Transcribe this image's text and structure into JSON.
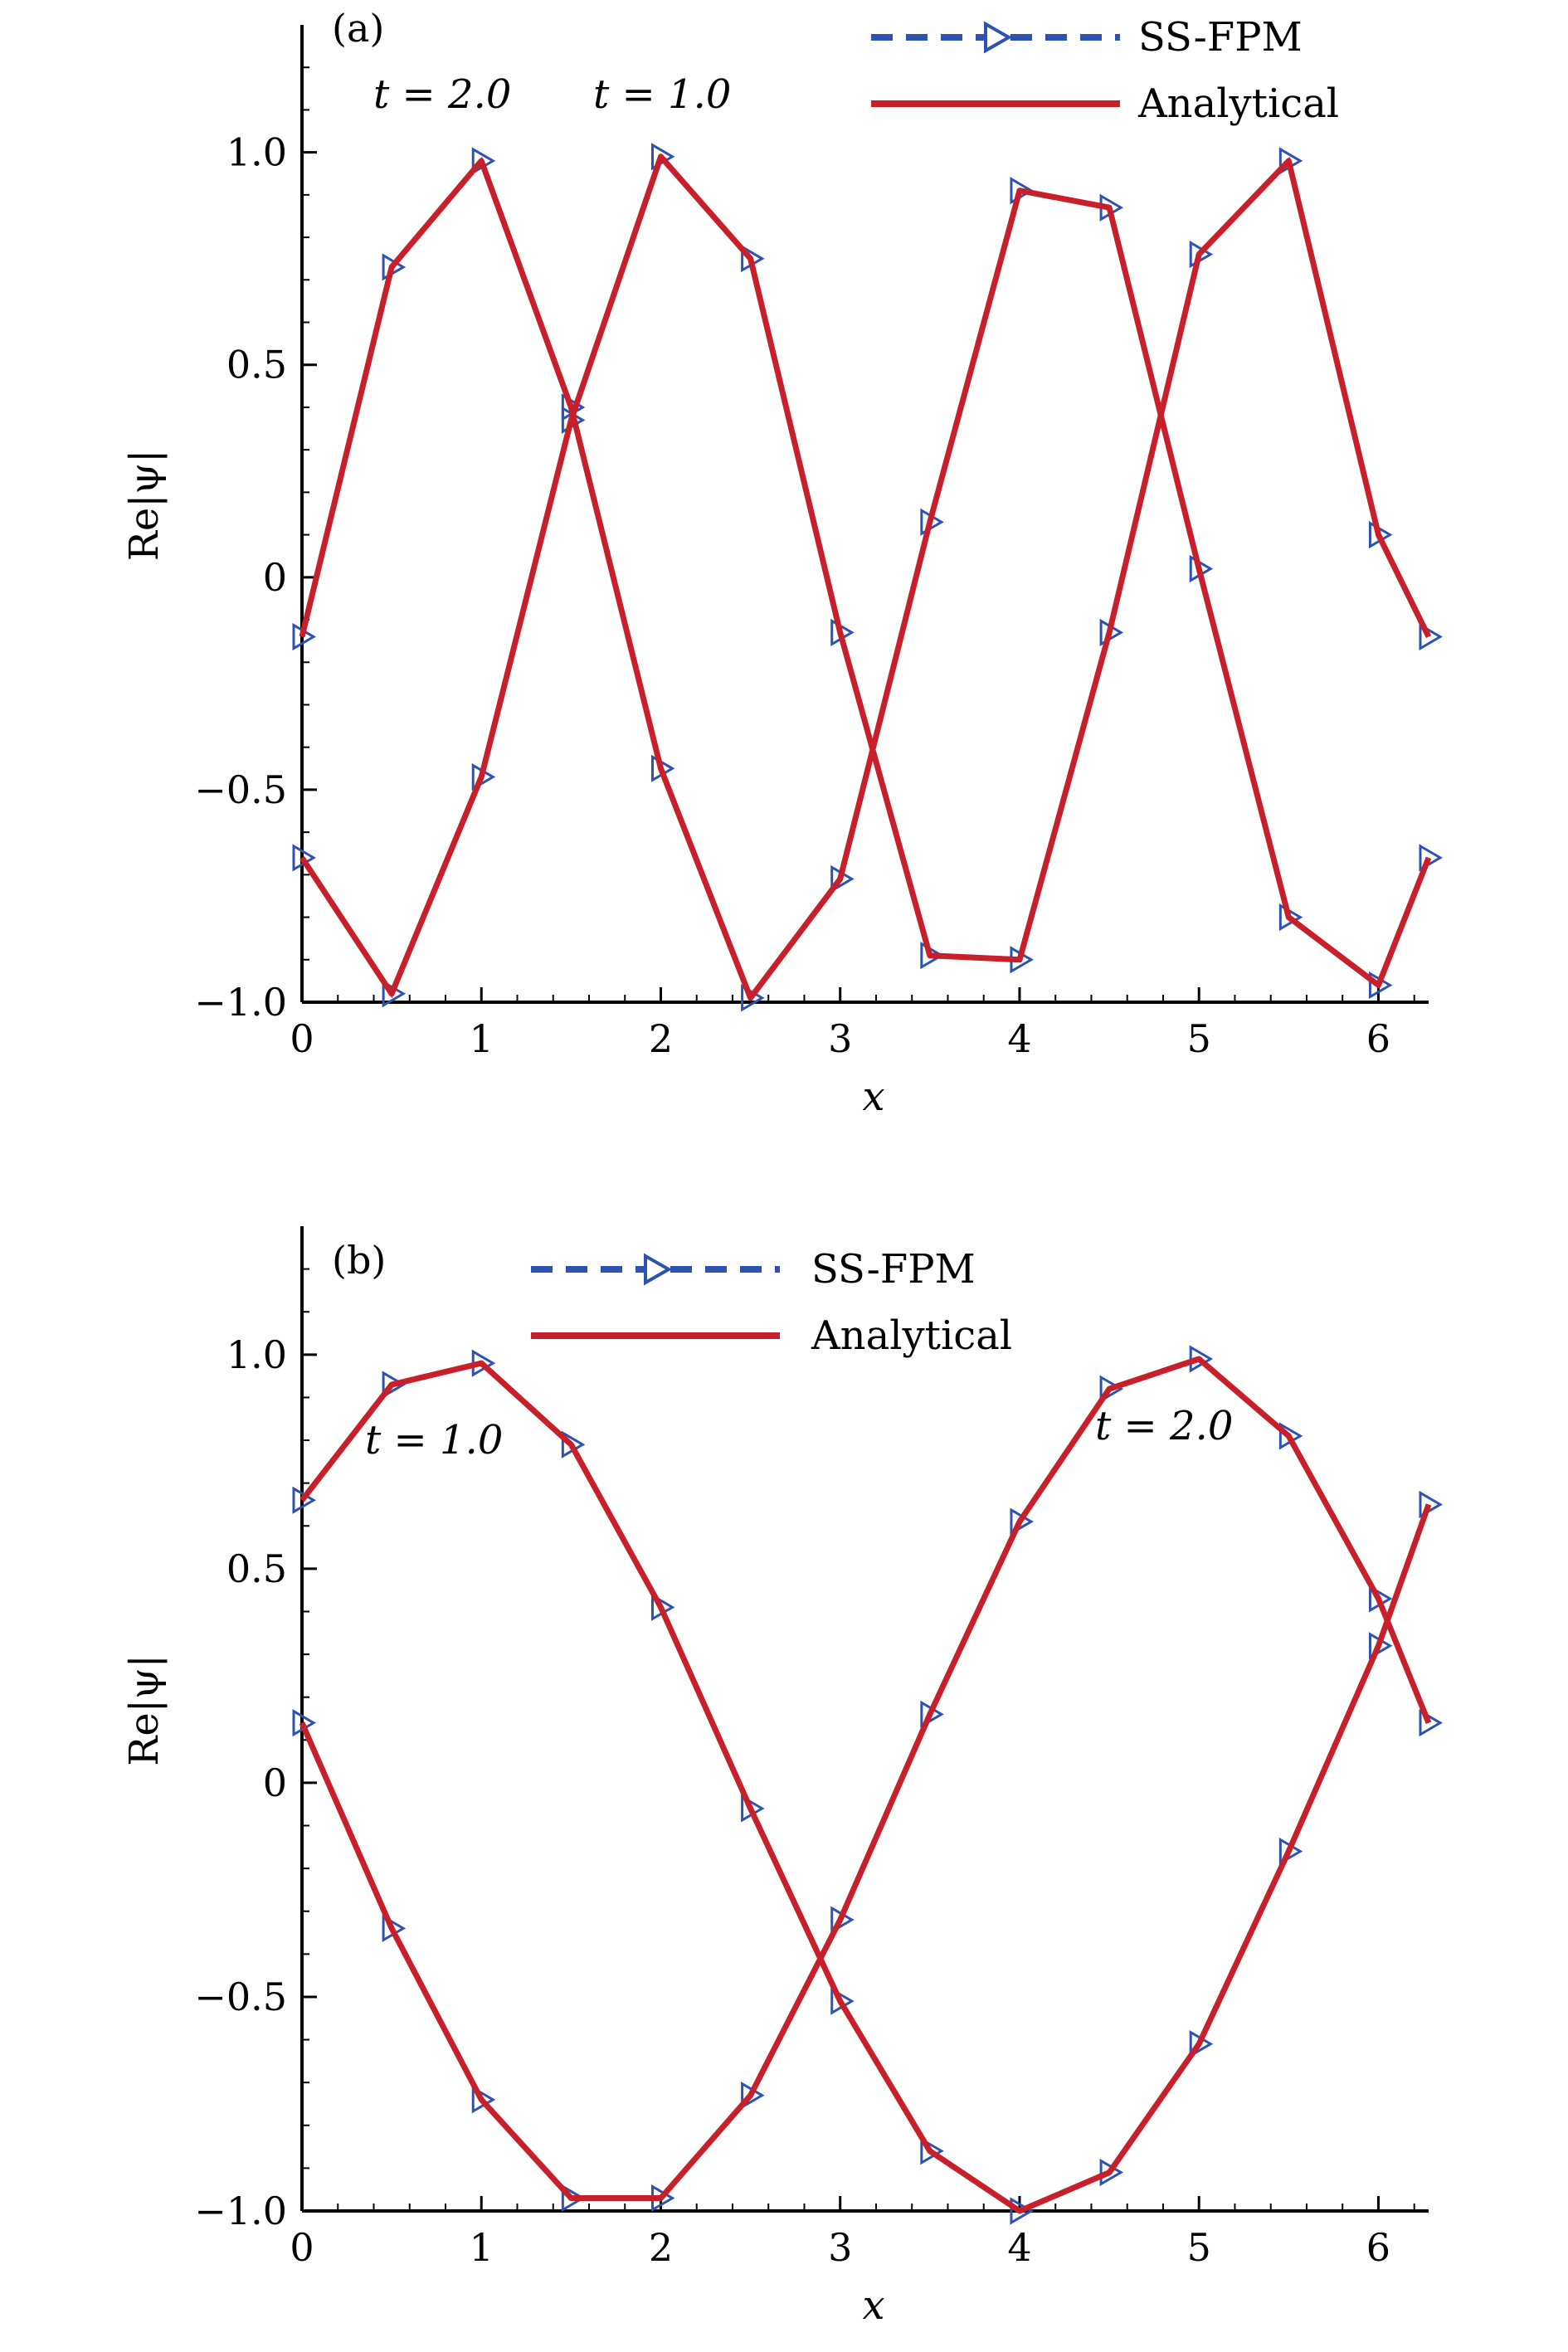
{
  "chart_data": [
    {
      "type": "line",
      "panel_label": "(a)",
      "xlabel": "x",
      "ylabel": "Re|ψ|",
      "xlim": [
        0,
        6.28
      ],
      "ylim": [
        -1.0,
        1.3
      ],
      "xticks": [
        "0",
        "1",
        "2",
        "3",
        "4",
        "5",
        "6"
      ],
      "yticks": [
        "−1.0",
        "−0.5",
        "0",
        "0.5",
        "1.0"
      ],
      "legend": [
        "SS-FPM",
        "Analytical"
      ],
      "annotations": [
        "t = 2.0",
        "t = 1.0"
      ],
      "series": [
        {
          "name": "SS-FPM",
          "style": "dashed line with triangle markers",
          "curves": [
            {
              "x": [
                0,
                0.5,
                1.0,
                1.5,
                2.0,
                2.5,
                3.0,
                3.5,
                4.0,
                4.5,
                5.0,
                5.5,
                6.0,
                6.28
              ],
              "y": [
                -0.14,
                0.73,
                0.98,
                0.4,
                -0.45,
                -0.99,
                -0.71,
                0.13,
                0.91,
                0.87,
                0.02,
                -0.8,
                -0.96,
                -0.66
              ]
            },
            {
              "x": [
                0,
                0.5,
                1.0,
                1.5,
                2.0,
                2.5,
                3.0,
                3.5,
                4.0,
                4.5,
                5.0,
                5.5,
                6.0,
                6.28
              ],
              "y": [
                -0.66,
                -0.98,
                -0.47,
                0.37,
                0.99,
                0.75,
                -0.13,
                -0.89,
                -0.9,
                -0.13,
                0.76,
                0.98,
                0.1,
                -0.14
              ]
            }
          ]
        },
        {
          "name": "Analytical",
          "style": "solid line",
          "curves": [
            {
              "x": [
                0,
                0.5,
                1.0,
                1.5,
                2.0,
                2.5,
                3.0,
                3.5,
                4.0,
                4.5,
                5.0,
                5.5,
                6.0,
                6.28
              ],
              "y": [
                -0.14,
                0.73,
                0.98,
                0.4,
                -0.45,
                -0.99,
                -0.71,
                0.13,
                0.91,
                0.87,
                0.02,
                -0.8,
                -0.96,
                -0.66
              ]
            },
            {
              "x": [
                0,
                0.5,
                1.0,
                1.5,
                2.0,
                2.5,
                3.0,
                3.5,
                4.0,
                4.5,
                5.0,
                5.5,
                6.0,
                6.28
              ],
              "y": [
                -0.66,
                -0.98,
                -0.47,
                0.37,
                0.99,
                0.75,
                -0.13,
                -0.89,
                -0.9,
                -0.13,
                0.76,
                0.98,
                0.1,
                -0.14
              ]
            }
          ]
        }
      ]
    },
    {
      "type": "line",
      "panel_label": "(b)",
      "xlabel": "x",
      "ylabel": "Re|ψ|",
      "xlim": [
        0,
        6.28
      ],
      "ylim": [
        -1.0,
        1.3
      ],
      "xticks": [
        "0",
        "1",
        "2",
        "3",
        "4",
        "5",
        "6"
      ],
      "yticks": [
        "−1.0",
        "−0.5",
        "0",
        "0.5",
        "1.0"
      ],
      "legend": [
        "SS-FPM",
        "Analytical"
      ],
      "annotations": [
        "t = 1.0",
        "t = 2.0"
      ],
      "series": [
        {
          "name": "SS-FPM",
          "style": "dashed line with triangle markers",
          "curves": [
            {
              "x": [
                0,
                0.5,
                1.0,
                1.5,
                2.0,
                2.5,
                3.0,
                3.5,
                4.0,
                4.5,
                5.0,
                5.5,
                6.0,
                6.28
              ],
              "y": [
                0.66,
                0.93,
                0.98,
                0.79,
                0.41,
                -0.06,
                -0.51,
                -0.86,
                -1.0,
                -0.91,
                -0.61,
                -0.16,
                0.32,
                0.65
              ]
            },
            {
              "x": [
                0,
                0.5,
                1.0,
                1.5,
                2.0,
                2.5,
                3.0,
                3.5,
                4.0,
                4.5,
                5.0,
                5.5,
                6.0,
                6.28
              ],
              "y": [
                0.14,
                -0.34,
                -0.74,
                -0.97,
                -0.97,
                -0.73,
                -0.32,
                0.16,
                0.61,
                0.92,
                0.99,
                0.81,
                0.43,
                0.14
              ]
            }
          ]
        },
        {
          "name": "Analytical",
          "style": "solid line",
          "curves": [
            {
              "x": [
                0,
                0.5,
                1.0,
                1.5,
                2.0,
                2.5,
                3.0,
                3.5,
                4.0,
                4.5,
                5.0,
                5.5,
                6.0,
                6.28
              ],
              "y": [
                0.66,
                0.93,
                0.98,
                0.79,
                0.41,
                -0.06,
                -0.51,
                -0.86,
                -1.0,
                -0.91,
                -0.61,
                -0.16,
                0.32,
                0.65
              ]
            },
            {
              "x": [
                0,
                0.5,
                1.0,
                1.5,
                2.0,
                2.5,
                3.0,
                3.5,
                4.0,
                4.5,
                5.0,
                5.5,
                6.0,
                6.28
              ],
              "y": [
                0.14,
                -0.34,
                -0.74,
                -0.97,
                -0.97,
                -0.73,
                -0.32,
                0.16,
                0.61,
                0.92,
                0.99,
                0.81,
                0.43,
                0.14
              ]
            }
          ]
        }
      ]
    }
  ],
  "colors": {
    "ss_fpm": "#2e52b0",
    "analytical": "#c8202a",
    "axis": "#000000"
  }
}
